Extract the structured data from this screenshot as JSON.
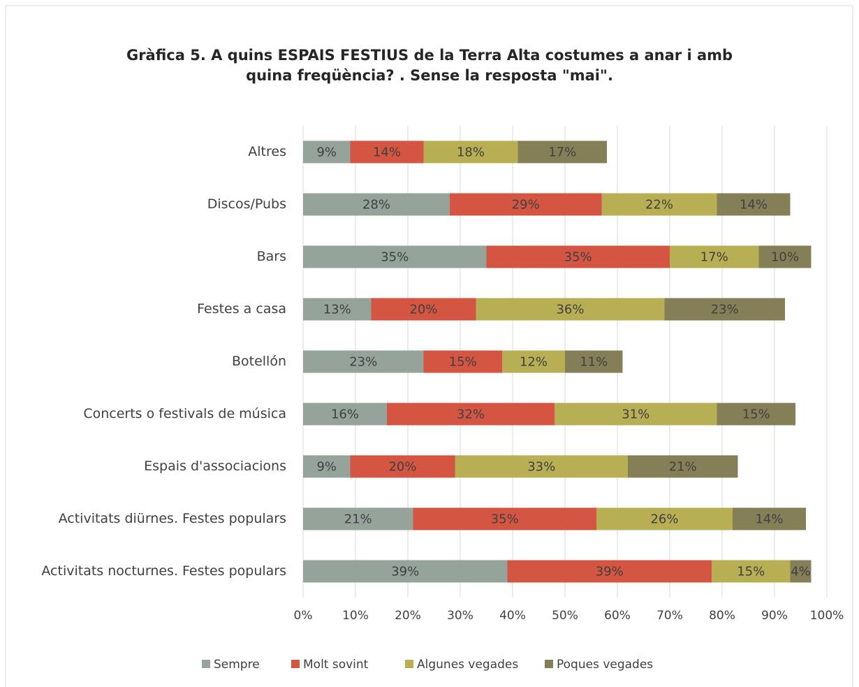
{
  "chart_data": {
    "type": "stacked_barh",
    "title": [
      "Gràfica 5. A quins ESPAIS FESTIUS de la Terra Alta costumes a anar i amb",
      "quina freqüència? . Sense la resposta \"mai\"."
    ],
    "categories": [
      "Altres",
      "Discos/Pubs",
      "Bars",
      "Festes a casa",
      "Botellón",
      "Concerts o festivals de música",
      "Espais d'associacions",
      "Activitats diürnes. Festes populars",
      "Activitats nocturnes. Festes populars"
    ],
    "series": [
      {
        "name": "Sempre",
        "color": "#95a39a",
        "values": [
          9,
          28,
          35,
          13,
          23,
          16,
          9,
          21,
          39
        ],
        "value_labels": [
          "9%",
          "28%",
          "35%",
          "13%",
          "23%",
          "16%",
          "9%",
          "21%",
          "39%"
        ]
      },
      {
        "name": "Molt sovint",
        "color": "#d35542",
        "values": [
          14,
          29,
          35,
          20,
          15,
          32,
          20,
          35,
          39
        ],
        "value_labels": [
          "14%",
          "29%",
          "35%",
          "20%",
          "15%",
          "32%",
          "20%",
          "35%",
          "39%"
        ]
      },
      {
        "name": "Algunes vegades",
        "color": "#b8af55",
        "values": [
          18,
          22,
          17,
          36,
          12,
          31,
          33,
          26,
          15
        ],
        "value_labels": [
          "18%",
          "22%",
          "17%",
          "36%",
          "12%",
          "31%",
          "33%",
          "26%",
          "15%"
        ]
      },
      {
        "name": "Poques vegades",
        "color": "#857f58",
        "values": [
          17,
          14,
          10,
          23,
          11,
          15,
          21,
          14,
          4
        ],
        "value_labels": [
          "17%",
          "14%",
          "10%",
          "23%",
          "11%",
          "15%",
          "21%",
          "14%",
          "4%"
        ]
      }
    ],
    "xlim": [
      0,
      100
    ],
    "xticks": [
      {
        "value": 0,
        "label": "0%"
      },
      {
        "value": 10,
        "label": "10%"
      },
      {
        "value": 20,
        "label": "20%"
      },
      {
        "value": 30,
        "label": "30%"
      },
      {
        "value": 40,
        "label": "40%"
      },
      {
        "value": 50,
        "label": "50%"
      },
      {
        "value": 60,
        "label": "60%"
      },
      {
        "value": 70,
        "label": "70%"
      },
      {
        "value": 80,
        "label": "80%"
      },
      {
        "value": 90,
        "label": "90%"
      },
      {
        "value": 100,
        "label": "100%"
      }
    ],
    "grid": true,
    "legend": "bottom"
  }
}
